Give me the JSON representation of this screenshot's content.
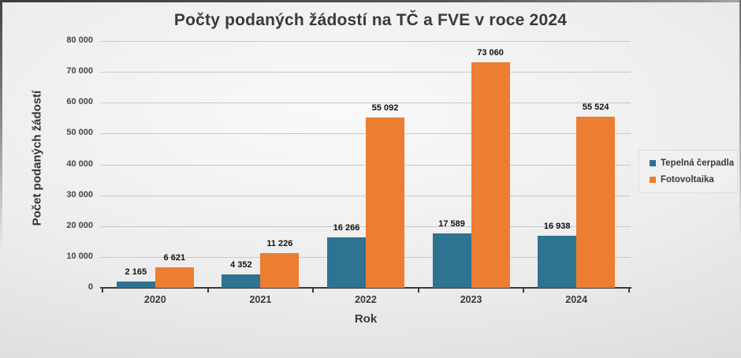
{
  "chart_data": {
    "type": "bar",
    "title": "Počty podaných žádostí na TČ a FVE v roce 2024",
    "xlabel": "Rok",
    "ylabel": "Počet podaných žádostí",
    "categories": [
      "2020",
      "2021",
      "2022",
      "2023",
      "2024"
    ],
    "series": [
      {
        "name": "Tepelná čerpadla",
        "color": "#2E7391",
        "values": [
          2165,
          4352,
          16266,
          17589,
          16938
        ]
      },
      {
        "name": "Fotovoltaika",
        "color": "#ED7D31",
        "values": [
          6621,
          11226,
          55092,
          73060,
          55524
        ]
      }
    ],
    "ylim": [
      0,
      80000
    ],
    "ytick_step": 10000,
    "ytick_labels": [
      "0",
      "10 000",
      "20 000",
      "30 000",
      "40 000",
      "50 000",
      "60 000",
      "70 000",
      "80 000"
    ],
    "data_labels": [
      [
        "2 165",
        "4 352",
        "16 266",
        "17 589",
        "16 938"
      ],
      [
        "6 621",
        "11 226",
        "55 092",
        "73 060",
        "55 524"
      ]
    ],
    "grid": true,
    "legend_position": "right",
    "axis_line_color": "#3a3a3a",
    "gridline_color": "#c7c9ca"
  }
}
